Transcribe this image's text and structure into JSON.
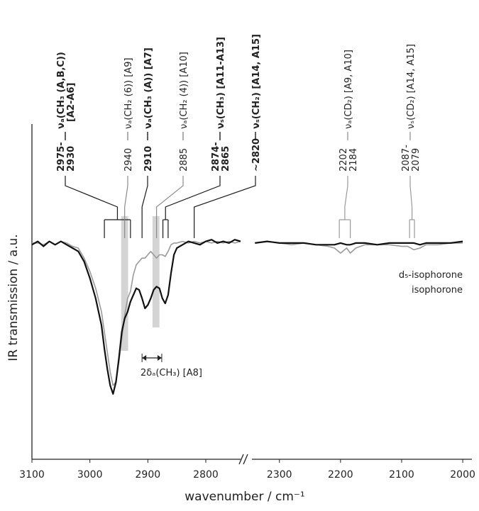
{
  "chart_data": {
    "type": "line",
    "x_label": "wavenumber / cm⁻¹",
    "y_label": "IR transmission / a.u.",
    "ylim": [
      0,
      100
    ],
    "x_segments": [
      {
        "xlim": [
          3100,
          2740
        ],
        "xticks": [
          3100,
          3000,
          2900,
          2800
        ]
      },
      {
        "xlim": [
          2345,
          1985
        ],
        "xticks": [
          2300,
          2200,
          2100,
          2000
        ]
      }
    ],
    "x": [
      3100,
      3090,
      3080,
      3070,
      3060,
      3050,
      3040,
      3030,
      3020,
      3010,
      3000,
      2990,
      2980,
      2975,
      2970,
      2965,
      2960,
      2955,
      2950,
      2945,
      2940,
      2935,
      2930,
      2925,
      2920,
      2915,
      2910,
      2905,
      2900,
      2895,
      2890,
      2885,
      2880,
      2875,
      2870,
      2865,
      2860,
      2855,
      2850,
      2840,
      2830,
      2820,
      2810,
      2800,
      2790,
      2780,
      2770,
      2760,
      2750,
      2740,
      null,
      2340,
      2320,
      2300,
      2280,
      2260,
      2240,
      2220,
      2210,
      2200,
      2190,
      2184,
      2175,
      2160,
      2140,
      2120,
      2100,
      2090,
      2080,
      2070,
      2060,
      2040,
      2020,
      2000
    ],
    "series": [
      {
        "name": "d₅-isophorone",
        "color": "#9a9a9a",
        "values": [
          64.5,
          64.5,
          64,
          65,
          64,
          65,
          64.5,
          63.5,
          63,
          60,
          56,
          51,
          44,
          38,
          32,
          26,
          22,
          23,
          29,
          36,
          43,
          48,
          50,
          55,
          58,
          59,
          60,
          60,
          61,
          62,
          61,
          60,
          61,
          61,
          60.5,
          62,
          64,
          64.5,
          64.5,
          65,
          64.5,
          65,
          64.5,
          65,
          64.5,
          65,
          64.5,
          65,
          64.5,
          65,
          null,
          64.5,
          65,
          64.5,
          64,
          64.5,
          64,
          63.5,
          63,
          61.5,
          63,
          61.5,
          63,
          64,
          64,
          64,
          63.5,
          63.5,
          62.5,
          63,
          64,
          64,
          64.5,
          64.5
        ]
      },
      {
        "name": "isophorone",
        "color": "#111111",
        "values": [
          64,
          65,
          63.5,
          65,
          64,
          65,
          64,
          63,
          62,
          59,
          54,
          48,
          40,
          33,
          27,
          22,
          19.5,
          23,
          30,
          38,
          42,
          44,
          47,
          49,
          51,
          50.5,
          48,
          45,
          46,
          48,
          50.5,
          51.5,
          51,
          48,
          46.5,
          49,
          55.5,
          61,
          63,
          64,
          65,
          64.5,
          64,
          65,
          65.5,
          64.5,
          65,
          64.5,
          65.5,
          65,
          null,
          64.5,
          65,
          64.5,
          64.5,
          64.5,
          64,
          64,
          64,
          64.5,
          64,
          64,
          64.5,
          64.5,
          64,
          64.5,
          64.5,
          64.5,
          64.5,
          64,
          64.5,
          64.5,
          64.5,
          65
        ]
      }
    ],
    "annotations": [
      {
        "numbers": [
          "2975-",
          "2930"
        ],
        "text": [
          "νₐ(CH₃ (A,B,C))",
          "[A2-A6]"
        ],
        "positions": [
          2975,
          2930
        ],
        "color": "#1a1a1a",
        "bold": true
      },
      {
        "numbers": [
          "2940"
        ],
        "text": [
          "νₐ(CH₂ (6)) [A9]"
        ],
        "positions": [
          2940
        ],
        "color": "#8c8c8c",
        "bold": false
      },
      {
        "numbers": [
          "2910"
        ],
        "text": [
          "νₐ(CH₃ (A)) [A7]"
        ],
        "positions": [
          2910
        ],
        "color": "#1a1a1a",
        "bold": true
      },
      {
        "numbers": [
          "2885"
        ],
        "text": [
          "νₐ(CH₂ (4)) [A10]"
        ],
        "positions": [
          2885
        ],
        "color": "#8c8c8c",
        "bold": false
      },
      {
        "numbers": [
          "2874-",
          "2865"
        ],
        "text": [
          "νₛ(CH₃) [A11-A13]"
        ],
        "positions": [
          2874,
          2865
        ],
        "color": "#1a1a1a",
        "bold": true
      },
      {
        "numbers": [
          "~2820"
        ],
        "text": [
          "νₛ(CH₂) [A14, A15]"
        ],
        "positions": [
          2820
        ],
        "color": "#1a1a1a",
        "bold": true
      },
      {
        "numbers": [
          "2202",
          "2184"
        ],
        "text": [
          "νₐ(CD₂) [A9, A10]"
        ],
        "positions": [
          2202,
          2184
        ],
        "color": "#9a9a9a",
        "bold": false
      },
      {
        "numbers": [
          "2087-",
          "2079"
        ],
        "text": [
          "νₛ(CD₂) [A14, A15]"
        ],
        "positions": [
          2087,
          2079
        ],
        "color": "#9a9a9a",
        "bold": false
      }
    ],
    "highlights": [
      {
        "xlim": [
          2946,
          2934
        ]
      },
      {
        "xlim": [
          2892,
          2880
        ]
      }
    ],
    "arrow": {
      "xlim": [
        2910,
        2876
      ],
      "label": "2δₐ(CH₃) [A8]"
    }
  }
}
